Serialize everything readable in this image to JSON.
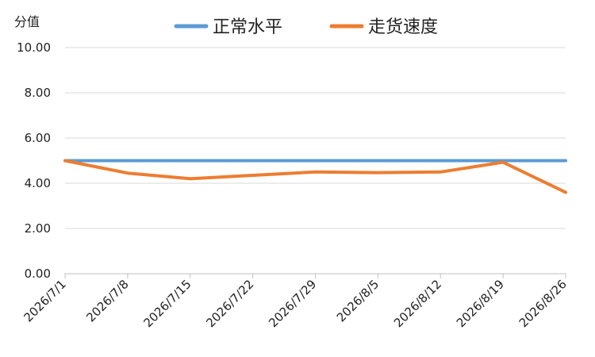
{
  "chart_data": {
    "type": "line",
    "ylabel": "分值",
    "ylim": [
      0,
      10
    ],
    "yticks": [
      "0.00",
      "2.00",
      "4.00",
      "6.00",
      "8.00",
      "10.00"
    ],
    "categories": [
      "2026/7/1",
      "2026/7/8",
      "2026/7/15",
      "2026/7/22",
      "2026/7/29",
      "2026/8/5",
      "2026/8/12",
      "2026/8/19",
      "2026/8/26"
    ],
    "series": [
      {
        "name": "正常水平",
        "color": "#5B9BD5",
        "values": [
          5,
          5,
          5,
          5,
          5,
          5,
          5,
          5,
          5
        ]
      },
      {
        "name": "走货速度",
        "color": "#ED7D31",
        "values": [
          5.0,
          4.45,
          4.2,
          4.35,
          4.5,
          4.47,
          4.5,
          4.93,
          3.6
        ]
      }
    ],
    "grid": true,
    "legend_position": "top"
  }
}
